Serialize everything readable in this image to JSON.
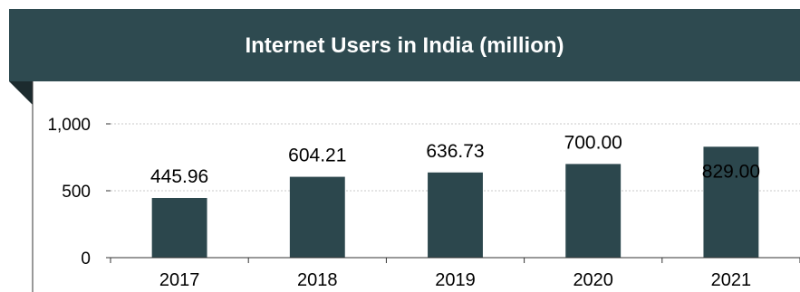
{
  "colors": {
    "banner": "#2e4a50",
    "fold": "#1c2b2e",
    "bar": "#2c474d",
    "grid": "#c8c8c8",
    "axis": "#333333",
    "text": "#000000"
  },
  "chart_data": {
    "type": "bar",
    "title": "Internet Users in India (million)",
    "categories": [
      "2017",
      "2018",
      "2019",
      "2020",
      "2021"
    ],
    "values": [
      445.96,
      604.21,
      636.73,
      700.0,
      829.0
    ],
    "data_labels": [
      "445.96",
      "604.21",
      "636.73",
      "700.00",
      "829.00"
    ],
    "yticks": [
      0,
      500,
      1000
    ],
    "ytick_labels": [
      "0",
      "500",
      "1,000"
    ],
    "ylim": [
      0,
      1000
    ],
    "grid": true,
    "legend": "none"
  }
}
